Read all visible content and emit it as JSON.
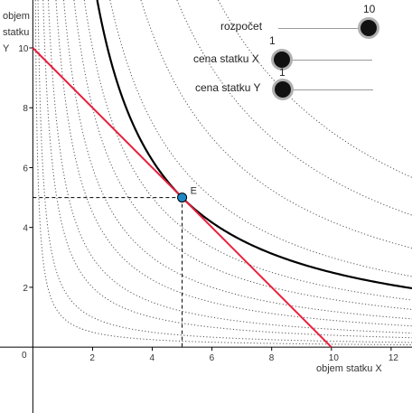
{
  "axes": {
    "ylabel_lines": [
      "objem",
      "statku",
      "Y"
    ],
    "xlabel": "objem statku X",
    "origin_label": "0"
  },
  "point": {
    "label": "E",
    "color": "#1e88c7"
  },
  "sliders": [
    {
      "id": "rozpocet",
      "label": "rozpočet",
      "value": 10,
      "min": 0,
      "max": 10
    },
    {
      "id": "cena-x",
      "label": "cena statku X",
      "value": 1,
      "min": 1,
      "max": 10
    },
    {
      "id": "cena-y",
      "label": "cena statku Y",
      "value": 1,
      "min": 1,
      "max": 10
    }
  ],
  "chart_data": {
    "type": "line",
    "xlim": [
      -1.1,
      12.7
    ],
    "ylim": [
      -2.2,
      11.6
    ],
    "xticks": [
      2,
      4,
      6,
      8,
      10,
      12
    ],
    "yticks": [
      2,
      4,
      6,
      8,
      10
    ],
    "budget_line": {
      "x": [
        0,
        10
      ],
      "y": [
        10,
        0
      ],
      "color": "#e8203e"
    },
    "optimal_indifference_curve": {
      "k": 25,
      "color": "#000000"
    },
    "indifference_curves_k": [
      1,
      2,
      4,
      6,
      9,
      12,
      16,
      20,
      30,
      42,
      56,
      72
    ],
    "optimum": {
      "x": 5,
      "y": 5
    }
  }
}
